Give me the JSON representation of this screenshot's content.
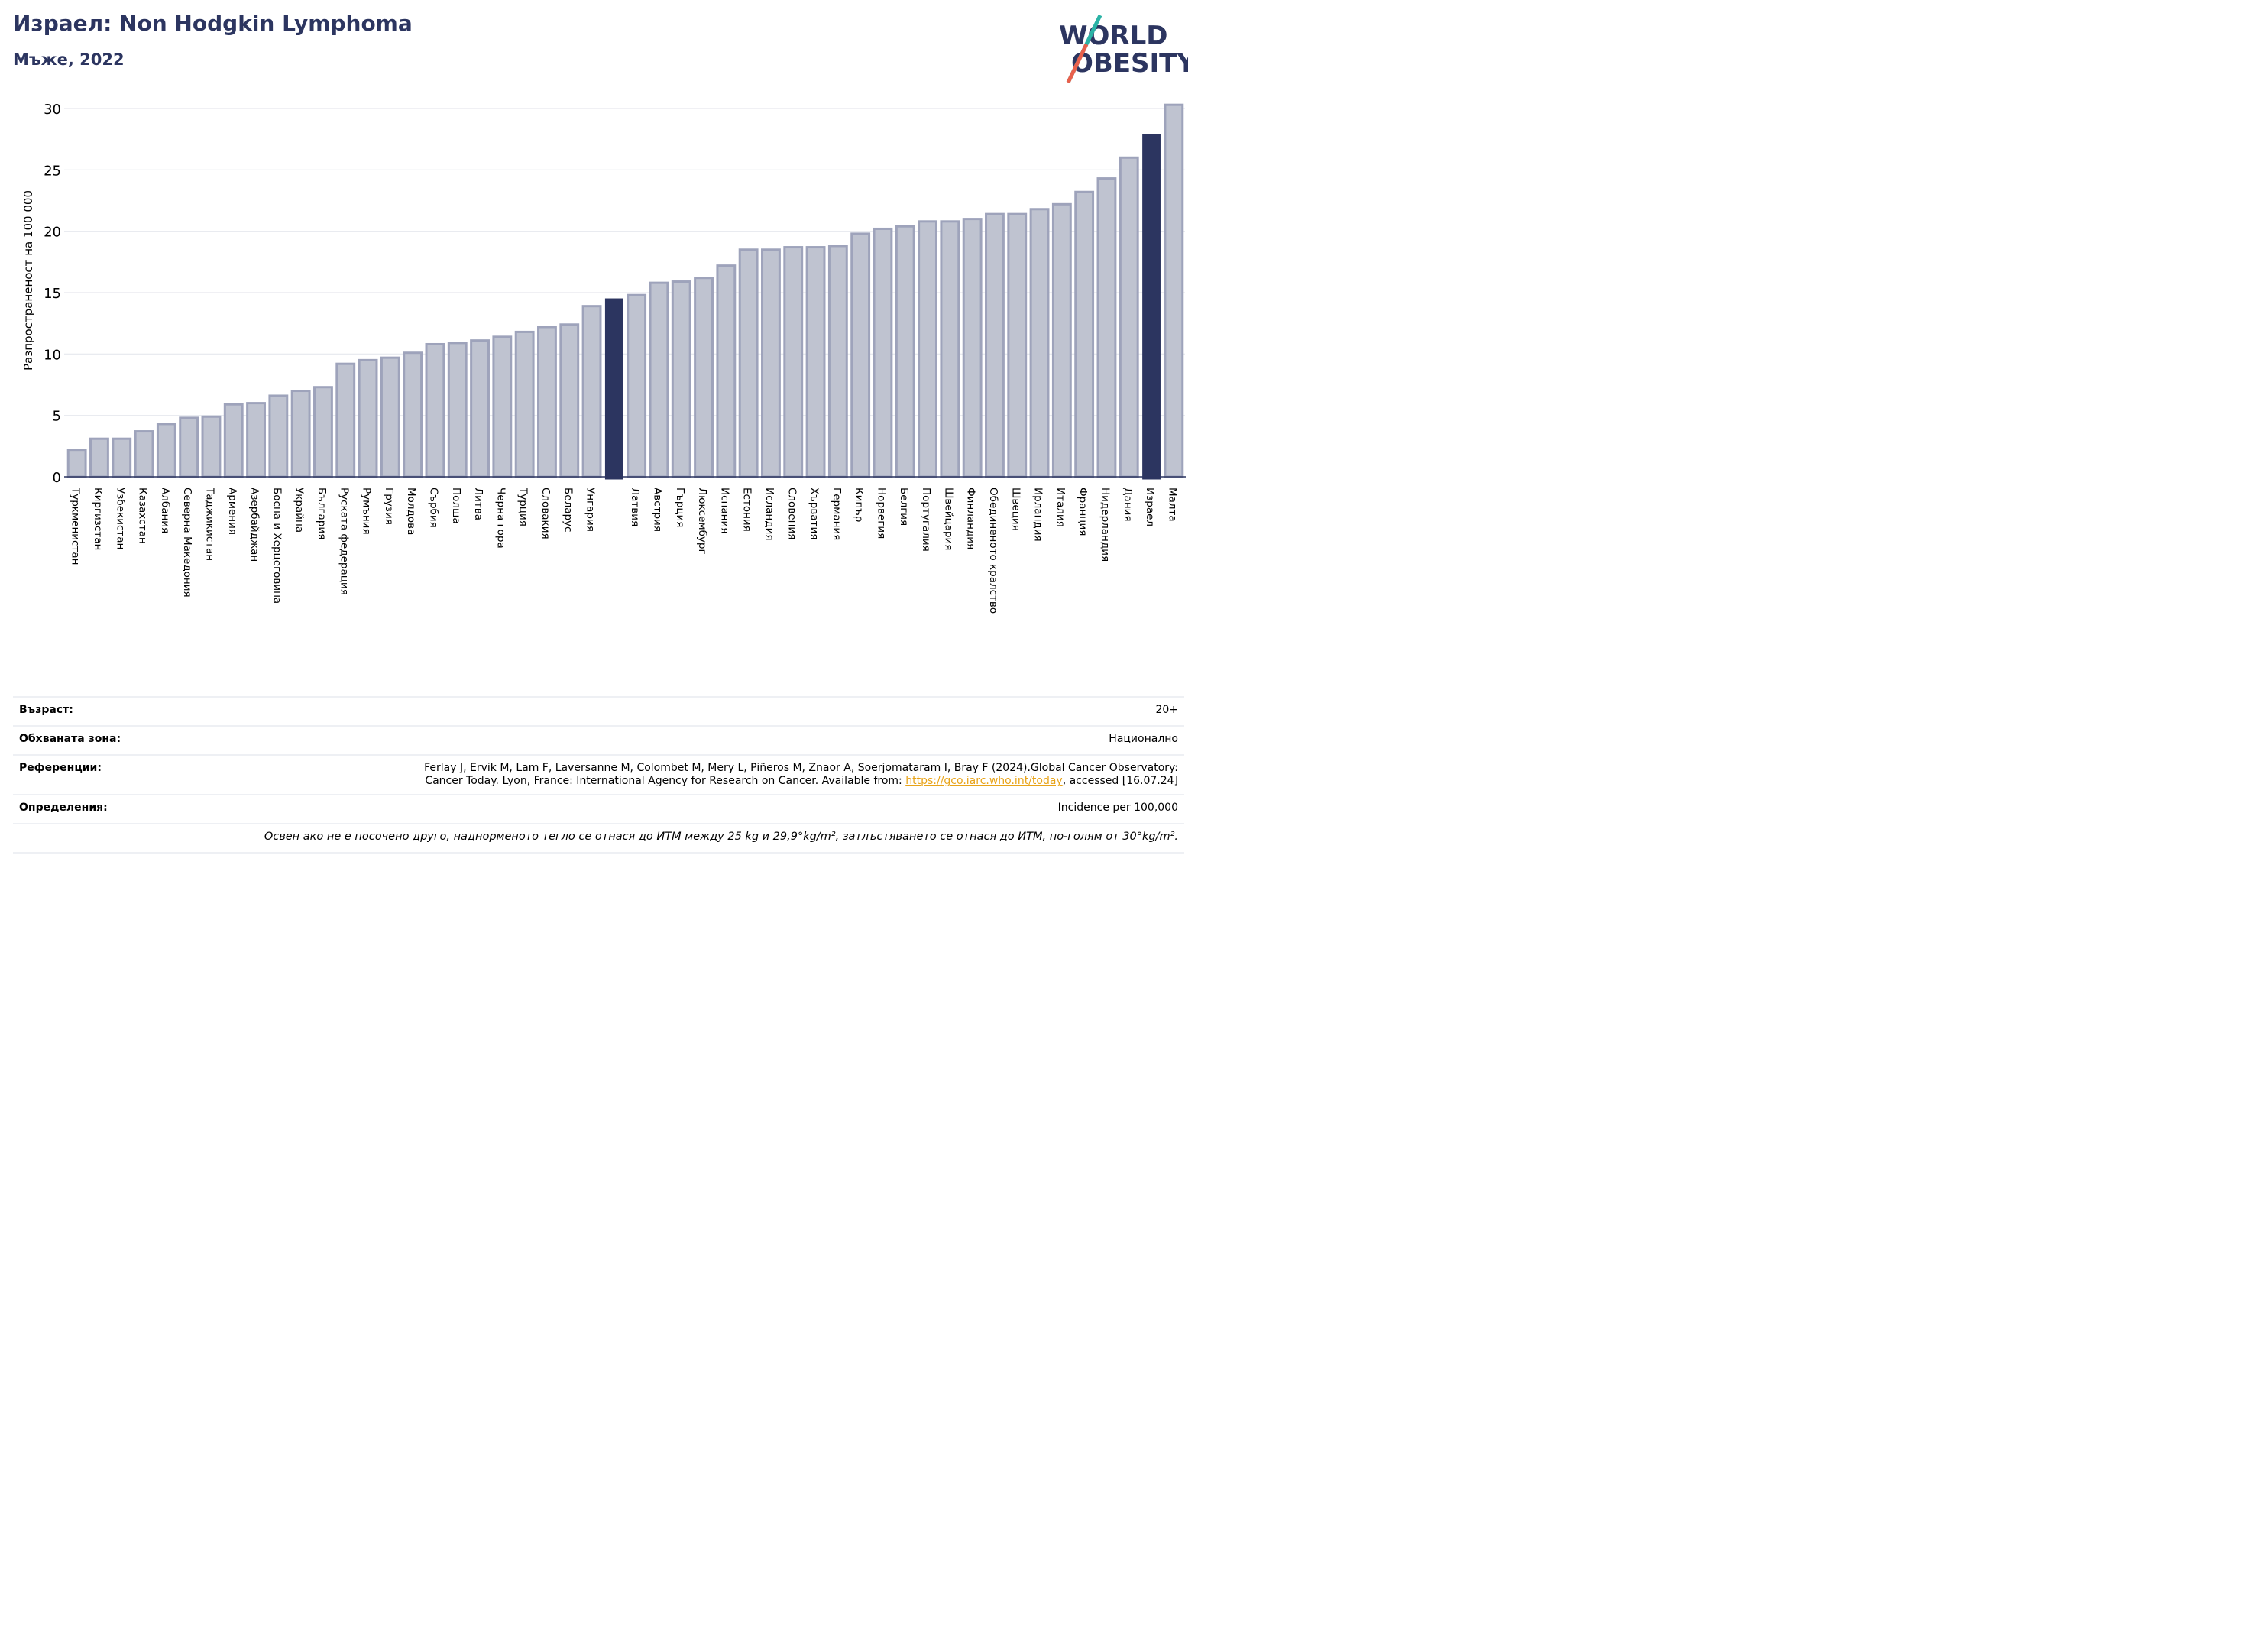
{
  "header": {
    "title": "Израел: Non Hodgkin Lymphoma",
    "subtitle": "Мъже, 2022",
    "logo_line1": "WORLD",
    "logo_line2": "OBESITY"
  },
  "colors": {
    "bar": "#bfc3d0",
    "bar_stroke": "#9ea3bb",
    "highlight": "#2c3560",
    "title": "#2c3560",
    "grid": "#e6e8ee",
    "link": "#e8a317"
  },
  "chart_data": {
    "type": "bar",
    "ylabel": "Разпространеност  на 100 000",
    "ylim": [
      0,
      31
    ],
    "yticks": [
      0,
      5,
      10,
      15,
      20,
      25,
      30
    ],
    "grid": true,
    "categories": [
      "Туркменистан",
      "Киргизстан",
      "Узбекистан",
      "Казахстан",
      "Албания",
      "Северна Македония",
      "Таджикистан",
      "Армения",
      "Азербайджан",
      "Босна и Херцеговина",
      "Украйна",
      "България",
      "Руската федерация",
      "Румъния",
      "Грузия",
      "Молдова",
      "Сърбия",
      "Полша",
      "Литва",
      "Черна гора",
      "Турция",
      "Словакия",
      "Беларус",
      "Унгария",
      "",
      "Латвия",
      "Австрия",
      "Гърция",
      "Люксембург",
      "Испания",
      "Естония",
      "Исландия",
      "Словения",
      "Хърватия",
      "Германия",
      "Кипър",
      "Норвегия",
      "Белгия",
      "Португалия",
      "Швейцария",
      "Финландия",
      "Обединеното кралство",
      "Швеция",
      "Ирландия",
      "Италия",
      "Франция",
      "Нидерландия",
      "Дания",
      "Израел",
      "Малта"
    ],
    "values": [
      2.2,
      3.1,
      3.1,
      3.7,
      4.3,
      4.8,
      4.9,
      5.9,
      6.0,
      6.6,
      7.0,
      7.3,
      9.2,
      9.5,
      9.7,
      10.1,
      10.8,
      10.9,
      11.1,
      11.4,
      11.8,
      12.2,
      12.4,
      13.9,
      14.5,
      14.8,
      15.8,
      15.9,
      16.2,
      17.2,
      18.5,
      18.5,
      18.7,
      18.7,
      18.8,
      19.8,
      20.2,
      20.4,
      20.8,
      20.8,
      21.0,
      21.4,
      21.4,
      21.8,
      22.2,
      23.2,
      24.3,
      26.0,
      27.9,
      30.3
    ],
    "highlighted": [
      "",
      "Израел"
    ]
  },
  "info": {
    "age_label": "Възраст:",
    "age_value": "20+",
    "area_label": "Обхваната зона:",
    "area_value": "Национално",
    "refs_label": "Референции:",
    "refs_line1": "Ferlay J, Ervik M, Lam F, Laversanne M, Colombet M, Mery L, Piñeros M, Znaor A, Soerjomataram I, Bray F (2024).Global Cancer Observatory:",
    "refs_line2_pre": "Cancer Today. Lyon, France: International Agency for Research on Cancer. Available from: ",
    "refs_link": "https://gco.iarc.who.int/today",
    "refs_line2_post": ", accessed [16.07.24]",
    "def_label": "Определения:",
    "def_value": "Incidence per 100,000",
    "note": "Освен ако не е посочено друго, наднорменото тегло се отнася до ИТМ между 25 kg и 29,9°kg/m², затлъстяването се отнася до ИТМ, по-голям от 30°kg/m²."
  }
}
